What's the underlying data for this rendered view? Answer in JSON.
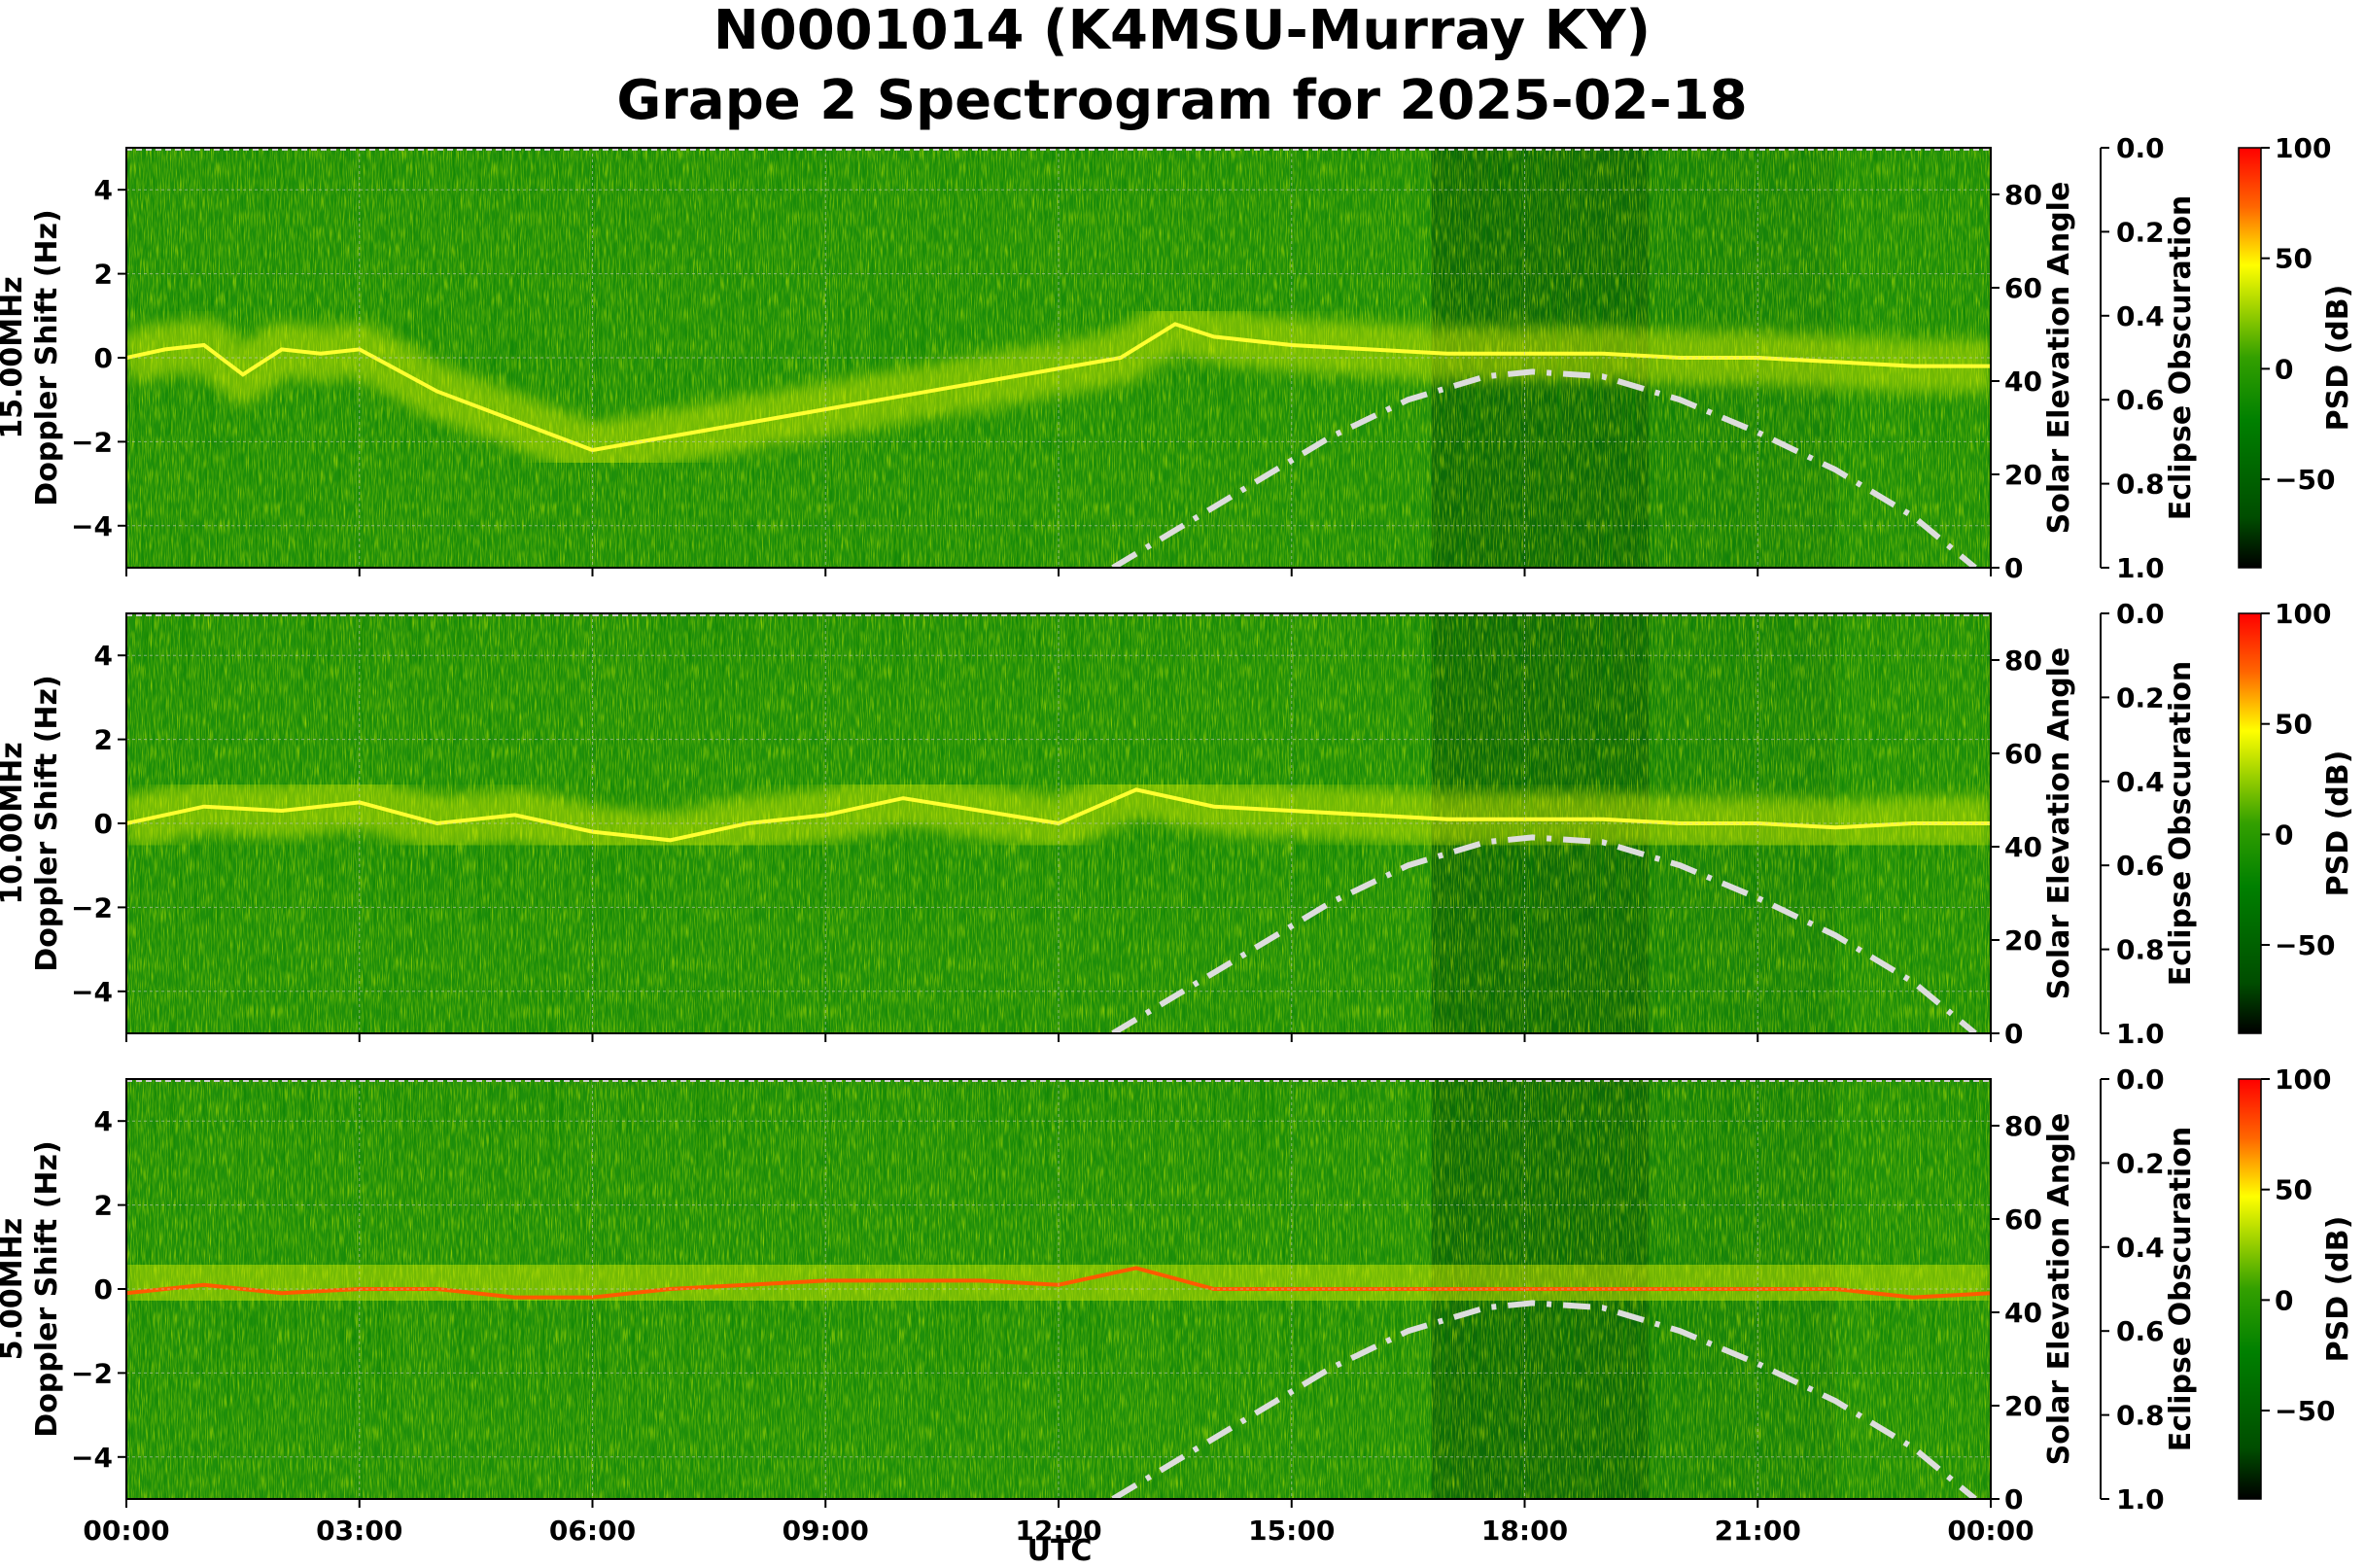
{
  "chart_data": {
    "type": "heatmap",
    "title": "N0001014 (K4MSU-Murray KY)",
    "subtitle": "Grape 2 Spectrogram for 2025-02-18",
    "xlabel": "UTC",
    "x_ticks": [
      "00:00",
      "03:00",
      "06:00",
      "09:00",
      "12:00",
      "15:00",
      "18:00",
      "21:00",
      "00:00"
    ],
    "y_ticks": [
      "4",
      "2",
      "0",
      "−2",
      "−4"
    ],
    "ylim": [
      -5,
      5
    ],
    "right_axis_label": "Solar Elevation Angle",
    "right_axis_ticks": [
      "80",
      "60",
      "40",
      "20",
      "0"
    ],
    "right_axis_range": [
      0,
      90
    ],
    "eclipse_axis_label": "Eclipse Obscuration",
    "eclipse_axis_ticks": [
      "0.0",
      "0.2",
      "0.4",
      "0.6",
      "0.8",
      "1.0"
    ],
    "colorbar_label": "PSD (dB)",
    "colorbar_ticks": [
      "100",
      "50",
      "0",
      "−50"
    ],
    "colorbar_range": [
      -90,
      100
    ],
    "colormap": [
      "#000000",
      "#004d00",
      "#008000",
      "#33a000",
      "#ffff00",
      "#ff6600",
      "#ff0000"
    ],
    "solar_elevation_curve": {
      "style": "dash-dot",
      "color": "#dddddd",
      "hours": [
        12.7,
        13.5,
        14.5,
        15.5,
        16.5,
        17.5,
        18.1,
        19.0,
        20.0,
        21.0,
        22.0,
        23.0,
        23.8
      ],
      "elevation": [
        0,
        8,
        18,
        28,
        36,
        41,
        42,
        41,
        36,
        29,
        21,
        11,
        0
      ]
    },
    "panels": [
      {
        "ylabel_freq": "15.00MHz",
        "ylabel": "Doppler Shift (Hz)",
        "trace_hours": [
          0,
          0.5,
          1,
          1.5,
          2,
          2.5,
          3,
          4,
          5,
          6,
          12.8,
          13.5,
          14,
          15,
          16,
          17,
          18,
          19,
          20,
          21,
          22,
          23,
          24
        ],
        "trace_doppler": [
          0,
          0.2,
          0.3,
          -0.4,
          0.2,
          0.1,
          0.2,
          -0.8,
          -1.5,
          -2.2,
          0,
          0.8,
          0.5,
          0.3,
          0.2,
          0.1,
          0.1,
          0.1,
          0,
          0,
          -0.1,
          -0.2,
          -0.2
        ]
      },
      {
        "ylabel_freq": "10.00MHz",
        "ylabel": "Doppler Shift (Hz)",
        "trace_hours": [
          0,
          1,
          2,
          3,
          4,
          5,
          6,
          7,
          8,
          9,
          10,
          11,
          12,
          13,
          14,
          15,
          16,
          17,
          18,
          19,
          20,
          21,
          22,
          23,
          24
        ],
        "trace_doppler": [
          0,
          0.4,
          0.3,
          0.5,
          0,
          0.2,
          -0.2,
          -0.4,
          0,
          0.2,
          0.6,
          0.3,
          0,
          0.8,
          0.4,
          0.3,
          0.2,
          0.1,
          0.1,
          0.1,
          0,
          0,
          -0.1,
          0,
          0
        ]
      },
      {
        "ylabel_freq": "5.00MHz",
        "ylabel": "Doppler Shift (Hz)",
        "trace_hours": [
          0,
          1,
          2,
          3,
          4,
          5,
          6,
          7,
          8,
          9,
          10,
          11,
          12,
          13,
          14,
          15,
          16,
          17,
          18,
          19,
          20,
          21,
          22,
          23,
          24
        ],
        "trace_doppler": [
          -0.1,
          0.1,
          -0.1,
          0,
          0,
          -0.2,
          -0.2,
          0,
          0.1,
          0.2,
          0.2,
          0.2,
          0.1,
          0.5,
          0,
          0,
          0,
          0,
          0,
          0,
          0,
          0,
          0,
          -0.2,
          -0.1
        ]
      }
    ]
  }
}
